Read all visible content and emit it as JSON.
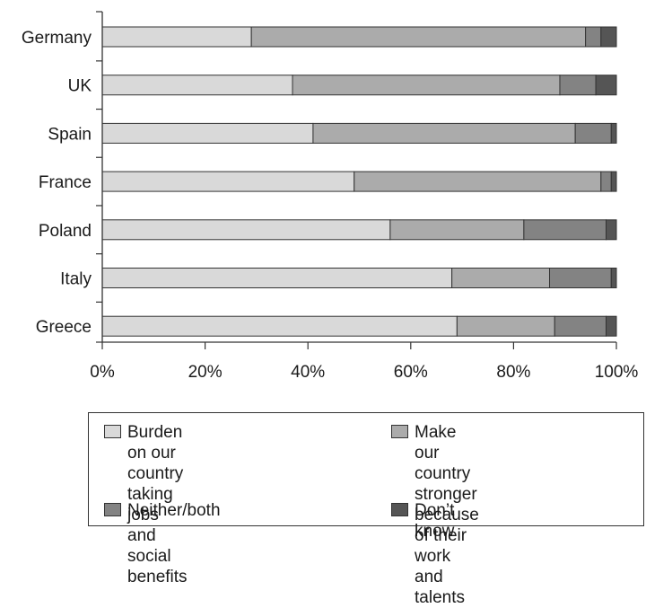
{
  "chart_data": {
    "type": "bar",
    "orientation": "horizontal",
    "stacked": true,
    "categories": [
      "Germany",
      "UK",
      "Spain",
      "France",
      "Poland",
      "Italy",
      "Greece"
    ],
    "series": [
      {
        "name": "Burden on our country taking jobs and social benefits",
        "color": "#d9d9d9",
        "values": [
          29,
          37,
          41,
          49,
          56,
          68,
          69
        ]
      },
      {
        "name": "Make our country stronger because of their work and talents",
        "color": "#ababab",
        "values": [
          65,
          52,
          51,
          48,
          26,
          19,
          19
        ]
      },
      {
        "name": "Neither/both",
        "color": "#838383",
        "values": [
          3,
          7,
          7,
          2,
          16,
          12,
          10
        ]
      },
      {
        "name": "Don’t know",
        "color": "#555555",
        "values": [
          3,
          4,
          1,
          1,
          2,
          1,
          2
        ]
      }
    ],
    "x_ticks": [
      "0%",
      "20%",
      "40%",
      "60%",
      "80%",
      "100%"
    ],
    "xlim": [
      0,
      100
    ],
    "legend_position": "bottom"
  },
  "legend": {
    "items": [
      {
        "lines": [
          "Burden on our country taking",
          "jobs and social benefits"
        ]
      },
      {
        "lines": [
          "Make our country stronger",
          "because of their work and",
          "talents"
        ]
      },
      {
        "lines": [
          "Neither/both"
        ]
      },
      {
        "lines": [
          "Don’t know"
        ]
      }
    ]
  }
}
